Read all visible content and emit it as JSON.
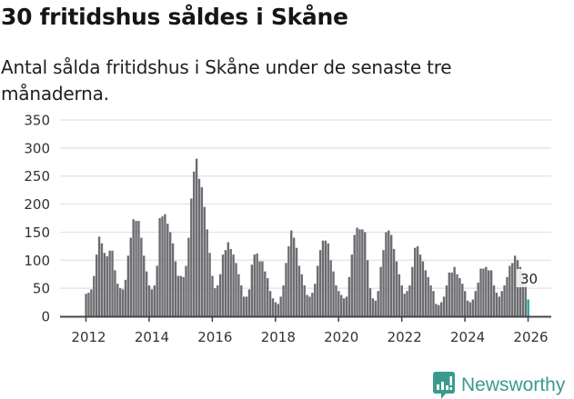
{
  "header": {
    "title": "30 fritidshus såldes i Skåne",
    "subtitle": "Antal sålda fritidshus i Skåne under de senaste tre månaderna."
  },
  "branding": {
    "logo_text": "Newsworthy",
    "logo_color": "#3a9a8e"
  },
  "colors": {
    "bar": "#6d6c71",
    "highlight": "#1aa39a",
    "grid": "#e2e2e2",
    "axis": "#444444"
  },
  "chart_data": {
    "type": "bar",
    "title": "30 fritidshus såldes i Skåne",
    "subtitle": "Antal sålda fritidshus i Skåne under de senaste tre månaderna.",
    "xlabel": "",
    "ylabel": "",
    "ylim": [
      0,
      350
    ],
    "yticks": [
      0,
      50,
      100,
      150,
      200,
      250,
      300,
      350
    ],
    "xticks": [
      "2012",
      "2014",
      "2016",
      "2018",
      "2020",
      "2022",
      "2024",
      "2026"
    ],
    "grid": true,
    "legend": null,
    "frequency": "monthly",
    "start": "2012-01",
    "end": "2026-01",
    "annotation": {
      "label": "30",
      "target": "last"
    },
    "values": [
      40,
      42,
      48,
      72,
      110,
      142,
      130,
      113,
      107,
      117,
      117,
      82,
      58,
      50,
      48,
      65,
      108,
      140,
      173,
      170,
      170,
      140,
      108,
      80,
      55,
      48,
      55,
      90,
      175,
      178,
      182,
      165,
      150,
      130,
      98,
      72,
      72,
      70,
      90,
      140,
      210,
      258,
      281,
      245,
      230,
      195,
      155,
      113,
      72,
      50,
      55,
      75,
      110,
      118,
      132,
      120,
      110,
      95,
      75,
      55,
      35,
      35,
      48,
      92,
      110,
      112,
      98,
      98,
      80,
      68,
      45,
      32,
      25,
      22,
      35,
      55,
      95,
      125,
      153,
      140,
      122,
      90,
      75,
      55,
      38,
      35,
      42,
      58,
      90,
      118,
      135,
      135,
      130,
      100,
      80,
      55,
      45,
      38,
      32,
      35,
      70,
      110,
      145,
      158,
      155,
      155,
      150,
      100,
      50,
      32,
      28,
      45,
      88,
      118,
      150,
      153,
      145,
      120,
      98,
      75,
      55,
      40,
      45,
      55,
      88,
      122,
      125,
      110,
      98,
      82,
      70,
      55,
      45,
      22,
      20,
      25,
      35,
      55,
      78,
      78,
      88,
      75,
      68,
      58,
      45,
      28,
      25,
      30,
      45,
      60,
      85,
      85,
      88,
      82,
      82,
      55,
      42,
      35,
      45,
      55,
      70,
      90,
      95,
      108,
      100,
      88,
      80,
      62,
      30
    ]
  }
}
